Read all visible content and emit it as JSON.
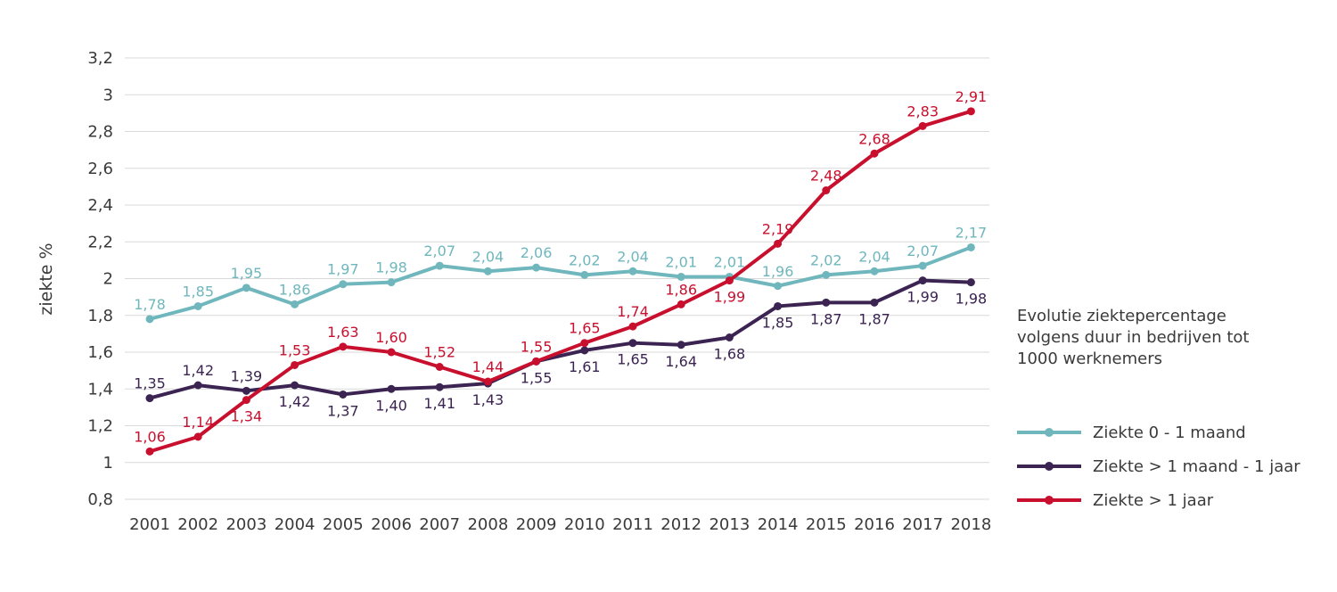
{
  "chart_data": {
    "type": "line",
    "title": "Evolutie ziektepercentage\nvolgens duur in bedrijven tot\n1000 werknemers",
    "ylabel": "ziekte %",
    "xlabel": "",
    "ylim": [
      0.8,
      3.2
    ],
    "y_ticks": [
      "0,8",
      "1",
      "1,2",
      "1,4",
      "1,6",
      "1,8",
      "2",
      "2,2",
      "2,4",
      "2,6",
      "2,8",
      "3",
      "3,2"
    ],
    "y_tick_values": [
      0.8,
      1.0,
      1.2,
      1.4,
      1.6,
      1.8,
      2.0,
      2.2,
      2.4,
      2.6,
      2.8,
      3.0,
      3.2
    ],
    "grid": true,
    "legend_position": "right",
    "categories": [
      "2001",
      "2002",
      "2003",
      "2004",
      "2005",
      "2006",
      "2007",
      "2008",
      "2009",
      "2010",
      "2011",
      "2012",
      "2013",
      "2014",
      "2015",
      "2016",
      "2017",
      "2018"
    ],
    "series": [
      {
        "name": "Ziekte 0 - 1 maand",
        "color": "#6fb7bd",
        "label_side": "above",
        "values": [
          1.78,
          1.85,
          1.95,
          1.86,
          1.97,
          1.98,
          2.07,
          2.04,
          2.06,
          2.02,
          2.04,
          2.01,
          2.01,
          1.96,
          2.02,
          2.04,
          2.07,
          2.17
        ],
        "labels": [
          "1,78",
          "1,85",
          "1,95",
          "1,86",
          "1,97",
          "1,98",
          "2,07",
          "2,04",
          "2,06",
          "2,02",
          "2,04",
          "2,01",
          "2,01",
          "1,96",
          "2,02",
          "2,04",
          "2,07",
          "2,17"
        ]
      },
      {
        "name": "Ziekte > 1 maand - 1 jaar",
        "color": "#3b2352",
        "label_side": "mixed",
        "values": [
          1.35,
          1.42,
          1.39,
          1.42,
          1.37,
          1.4,
          1.41,
          1.43,
          1.55,
          1.61,
          1.65,
          1.64,
          1.68,
          1.85,
          1.87,
          1.87,
          1.99,
          1.98
        ],
        "labels": [
          "1,35",
          "1,42",
          "1,39",
          "1,42",
          "1,37",
          "1,40",
          "1,41",
          "1,43",
          "1,55",
          "1,61",
          "1,65",
          "1,64",
          "1,68",
          "1,85",
          "1,87",
          "1,87",
          "1,99",
          "1,98"
        ]
      },
      {
        "name": "Ziekte > 1 jaar",
        "color": "#c8102e",
        "label_side": "mixed",
        "values": [
          1.06,
          1.14,
          1.34,
          1.53,
          1.63,
          1.6,
          1.52,
          1.44,
          1.55,
          1.65,
          1.74,
          1.86,
          1.99,
          2.19,
          2.48,
          2.68,
          2.83,
          2.91
        ],
        "labels": [
          "1,06",
          "1,14",
          "1,34",
          "1,53",
          "1,63",
          "1,60",
          "1,52",
          "1,44",
          "1,55",
          "1,65",
          "1,74",
          "1,86",
          "1,99",
          "2,19",
          "2,48",
          "2,68",
          "2,83",
          "2,91"
        ]
      }
    ]
  }
}
